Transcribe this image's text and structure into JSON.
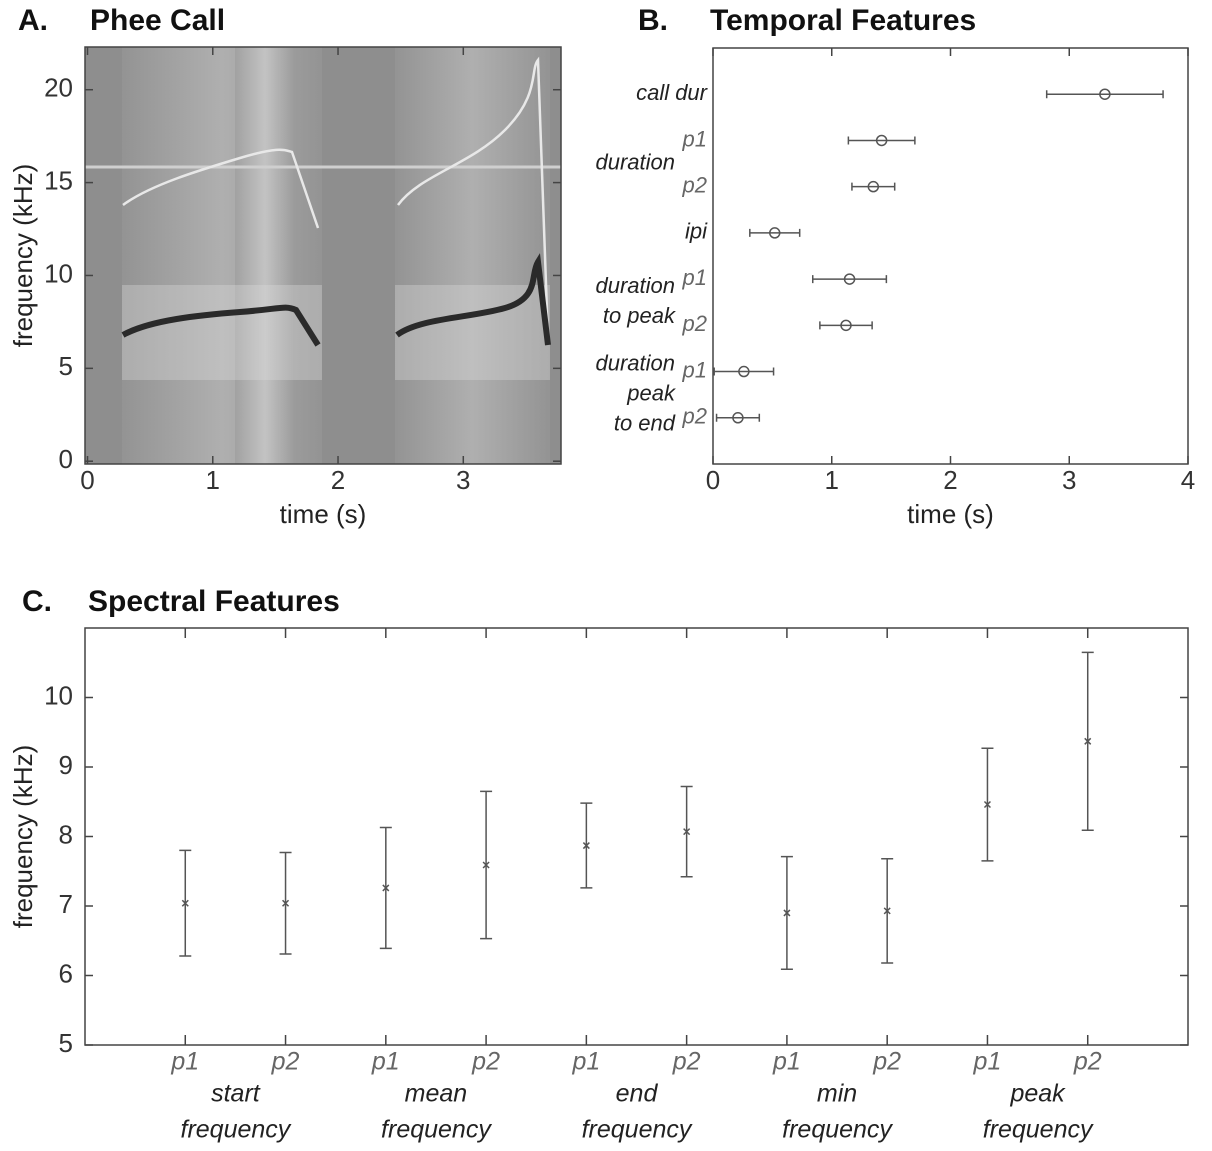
{
  "chart_data": [
    {
      "type": "spectrogram",
      "label": "A.",
      "title": "Phee Call",
      "xlabel": "time (s)",
      "ylabel": "frequency (kHz)",
      "xlim": [
        -0.02,
        3.78
      ],
      "ylim": [
        -0.15,
        22.3
      ],
      "xticks": [
        0,
        1,
        2,
        3
      ],
      "yticks": [
        0,
        5,
        10,
        15,
        20
      ]
    },
    {
      "type": "errorbar",
      "orientation": "horizontal",
      "marker": "circle",
      "color": "#555555",
      "label": "B.",
      "title": "Temporal Features",
      "xlabel": "time (s)",
      "xlim": [
        0,
        4
      ],
      "xticks": [
        0,
        1,
        2,
        3,
        4
      ],
      "groups": [
        {
          "name": [
            "call dur"
          ],
          "categories": [
            null
          ],
          "values": [
            3.3
          ],
          "errors": [
            0.49
          ]
        },
        {
          "name": [
            "duration"
          ],
          "categories": [
            "p1",
            "p2"
          ],
          "values": [
            1.42,
            1.35
          ],
          "errors": [
            0.28,
            0.18
          ]
        },
        {
          "name": [
            "ipi"
          ],
          "categories": [
            null
          ],
          "values": [
            0.52
          ],
          "errors": [
            0.21
          ]
        },
        {
          "name": [
            "duration",
            "to peak"
          ],
          "categories": [
            "p1",
            "p2"
          ],
          "values": [
            1.15,
            1.12
          ],
          "errors": [
            0.31,
            0.22
          ]
        },
        {
          "name": [
            "duration",
            "peak",
            "to end"
          ],
          "categories": [
            "p1",
            "p2"
          ],
          "values": [
            0.26,
            0.21
          ],
          "errors": [
            0.25,
            0.18
          ]
        }
      ]
    },
    {
      "type": "errorbar",
      "orientation": "vertical",
      "marker": "x",
      "color": "#555555",
      "label": "C.",
      "title": "Spectral Features",
      "ylabel": "frequency (kHz)",
      "ylim": [
        5,
        11
      ],
      "yticks": [
        5,
        6,
        7,
        8,
        9,
        10
      ],
      "groups": [
        {
          "name": [
            "start",
            "frequency"
          ],
          "categories": [
            "p1",
            "p2"
          ],
          "values": [
            7.04,
            7.04
          ],
          "errors": [
            0.76,
            0.73
          ]
        },
        {
          "name": [
            "mean",
            "frequency"
          ],
          "categories": [
            "p1",
            "p2"
          ],
          "values": [
            7.26,
            7.59
          ],
          "errors": [
            0.87,
            1.06
          ]
        },
        {
          "name": [
            "end",
            "frequency"
          ],
          "categories": [
            "p1",
            "p2"
          ],
          "values": [
            7.87,
            8.07
          ],
          "errors": [
            0.61,
            0.65
          ]
        },
        {
          "name": [
            "min",
            "frequency"
          ],
          "categories": [
            "p1",
            "p2"
          ],
          "values": [
            6.9,
            6.93
          ],
          "errors": [
            0.81,
            0.75
          ]
        },
        {
          "name": [
            "peak",
            "frequency"
          ],
          "categories": [
            "p1",
            "p2"
          ],
          "values": [
            8.46,
            9.37
          ],
          "errors": [
            0.81,
            1.28
          ]
        }
      ]
    }
  ]
}
